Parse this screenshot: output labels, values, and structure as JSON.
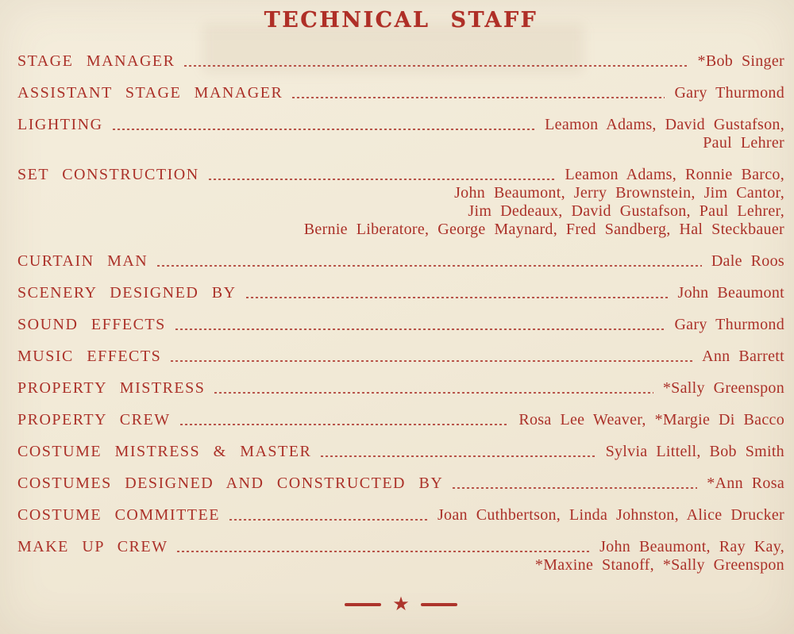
{
  "page": {
    "title": "TECHNICAL STAFF",
    "colors": {
      "ink": "#ab3129",
      "paper": "#f1e9d6"
    },
    "rows": [
      {
        "role": "STAGE MANAGER",
        "names": [
          "*Bob Singer"
        ]
      },
      {
        "role": "ASSISTANT STAGE MANAGER",
        "names": [
          "Gary Thurmond"
        ]
      },
      {
        "role": "LIGHTING",
        "names": [
          "Leamon Adams, David Gustafson,",
          "Paul Lehrer"
        ]
      },
      {
        "role": "SET CONSTRUCTION",
        "names": [
          "Leamon Adams, Ronnie Barco,",
          "John Beaumont, Jerry Brownstein, Jim Cantor,",
          "Jim Dedeaux, David Gustafson, Paul Lehrer,",
          "Bernie Liberatore, George Maynard, Fred Sandberg, Hal Steckbauer"
        ]
      },
      {
        "role": "CURTAIN MAN",
        "names": [
          "Dale Roos"
        ]
      },
      {
        "role": "SCENERY DESIGNED BY",
        "names": [
          "John Beaumont"
        ]
      },
      {
        "role": "SOUND EFFECTS",
        "names": [
          "Gary Thurmond"
        ]
      },
      {
        "role": "MUSIC EFFECTS",
        "names": [
          "Ann Barrett"
        ]
      },
      {
        "role": "PROPERTY MISTRESS",
        "names": [
          "*Sally Greenspon"
        ]
      },
      {
        "role": "PROPERTY CREW",
        "names": [
          "Rosa Lee Weaver, *Margie Di Bacco"
        ]
      },
      {
        "role": "COSTUME MISTRESS & MASTER",
        "names": [
          "Sylvia Littell, Bob Smith"
        ]
      },
      {
        "role": "COSTUMES DESIGNED AND CONSTRUCTED BY",
        "names": [
          "*Ann Rosa"
        ]
      },
      {
        "role": "COSTUME COMMITTEE",
        "names": [
          "Joan Cuthbertson, Linda Johnston, Alice Drucker"
        ]
      },
      {
        "role": "MAKE UP CREW",
        "names": [
          "John Beaumont, Ray Kay,",
          "*Maxine Stanoff, *Sally Greenspon"
        ]
      }
    ],
    "footer": {
      "star": "★"
    }
  }
}
